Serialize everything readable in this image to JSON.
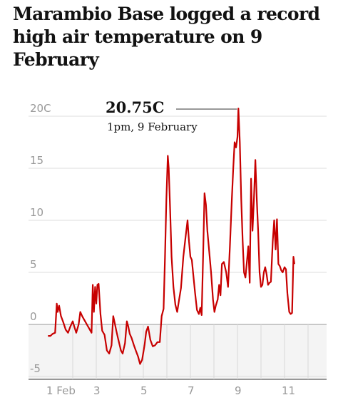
{
  "headline": "Marambio Base logged a record high air temperature on 9 February",
  "colors": {
    "line": "#c70000",
    "grid": "#dcdcdc",
    "below_zero_fill": "#f4f4f4",
    "axis_text": "#999999"
  },
  "chart_data": {
    "type": "line",
    "title": "Marambio Base logged a record high air temperature on 9 February",
    "xlabel": "",
    "ylabel": "",
    "ylim": [
      -5,
      21
    ],
    "xlim": [
      0.9,
      12.5
    ],
    "y_ticks": [
      {
        "value": 20,
        "label": "20C"
      },
      {
        "value": 15,
        "label": "15"
      },
      {
        "value": 10,
        "label": "10"
      },
      {
        "value": 5,
        "label": "5"
      },
      {
        "value": 0,
        "label": "0"
      },
      {
        "value": -5,
        "label": "-5"
      }
    ],
    "x_ticks": [
      {
        "value": 1,
        "label": "1 Feb"
      },
      {
        "value": 3,
        "label": "3"
      },
      {
        "value": 5,
        "label": "5"
      },
      {
        "value": 7,
        "label": "7"
      },
      {
        "value": 9,
        "label": "9"
      },
      {
        "value": 11,
        "label": "11"
      }
    ],
    "x_unit": "day of February",
    "grid": true,
    "annotation": {
      "value_label": "20.75C",
      "time_label": "1pm, 9 February",
      "x": 9.04,
      "y": 20.75
    },
    "series": [
      {
        "values": [
          [
            0.95,
            -1.1
          ],
          [
            1.05,
            -1.1
          ],
          [
            1.15,
            -0.9
          ],
          [
            1.25,
            -0.8
          ],
          [
            1.32,
            2.0
          ],
          [
            1.36,
            1.2
          ],
          [
            1.42,
            1.8
          ],
          [
            1.5,
            0.8
          ],
          [
            1.6,
            0.2
          ],
          [
            1.7,
            -0.5
          ],
          [
            1.8,
            -0.8
          ],
          [
            1.9,
            -0.2
          ],
          [
            2.0,
            0.3
          ],
          [
            2.08,
            -0.3
          ],
          [
            2.15,
            -0.8
          ],
          [
            2.25,
            0.0
          ],
          [
            2.32,
            1.2
          ],
          [
            2.4,
            0.8
          ],
          [
            2.5,
            0.4
          ],
          [
            2.6,
            0.0
          ],
          [
            2.7,
            -0.4
          ],
          [
            2.8,
            -0.8
          ],
          [
            2.85,
            3.8
          ],
          [
            2.9,
            1.2
          ],
          [
            2.95,
            3.6
          ],
          [
            3.0,
            2.0
          ],
          [
            3.05,
            3.8
          ],
          [
            3.1,
            3.9
          ],
          [
            3.18,
            1.0
          ],
          [
            3.25,
            -0.6
          ],
          [
            3.35,
            -1.0
          ],
          [
            3.45,
            -2.5
          ],
          [
            3.55,
            -2.8
          ],
          [
            3.65,
            -2.0
          ],
          [
            3.72,
            0.8
          ],
          [
            3.78,
            0.2
          ],
          [
            3.85,
            -0.6
          ],
          [
            3.95,
            -1.6
          ],
          [
            4.05,
            -2.5
          ],
          [
            4.12,
            -2.8
          ],
          [
            4.22,
            -1.8
          ],
          [
            4.3,
            0.3
          ],
          [
            4.36,
            -0.2
          ],
          [
            4.42,
            -0.9
          ],
          [
            4.5,
            -1.3
          ],
          [
            4.6,
            -2.0
          ],
          [
            4.68,
            -2.5
          ],
          [
            4.78,
            -3.1
          ],
          [
            4.86,
            -3.8
          ],
          [
            4.95,
            -3.4
          ],
          [
            5.05,
            -2.0
          ],
          [
            5.12,
            -0.7
          ],
          [
            5.2,
            -0.2
          ],
          [
            5.3,
            -1.5
          ],
          [
            5.4,
            -2.1
          ],
          [
            5.5,
            -2.0
          ],
          [
            5.6,
            -1.7
          ],
          [
            5.7,
            -1.7
          ],
          [
            5.78,
            0.8
          ],
          [
            5.86,
            1.5
          ],
          [
            5.92,
            6.5
          ],
          [
            5.98,
            12.0
          ],
          [
            6.04,
            16.2
          ],
          [
            6.08,
            15.0
          ],
          [
            6.14,
            11.0
          ],
          [
            6.2,
            6.5
          ],
          [
            6.28,
            3.6
          ],
          [
            6.36,
            1.9
          ],
          [
            6.44,
            1.2
          ],
          [
            6.52,
            2.4
          ],
          [
            6.6,
            3.5
          ],
          [
            6.7,
            6.5
          ],
          [
            6.8,
            8.5
          ],
          [
            6.88,
            10.0
          ],
          [
            6.94,
            8.0
          ],
          [
            7.0,
            6.5
          ],
          [
            7.06,
            6.2
          ],
          [
            7.12,
            4.8
          ],
          [
            7.2,
            3.0
          ],
          [
            7.28,
            1.4
          ],
          [
            7.36,
            1.0
          ],
          [
            7.42,
            1.6
          ],
          [
            7.48,
            0.9
          ],
          [
            7.54,
            6.5
          ],
          [
            7.6,
            12.6
          ],
          [
            7.66,
            11.5
          ],
          [
            7.72,
            9.0
          ],
          [
            7.8,
            7.0
          ],
          [
            7.88,
            5.0
          ],
          [
            7.96,
            2.4
          ],
          [
            8.02,
            1.2
          ],
          [
            8.08,
            1.8
          ],
          [
            8.16,
            2.4
          ],
          [
            8.22,
            3.8
          ],
          [
            8.28,
            2.8
          ],
          [
            8.34,
            5.8
          ],
          [
            8.42,
            6.0
          ],
          [
            8.52,
            5.0
          ],
          [
            8.6,
            3.6
          ],
          [
            8.68,
            7.5
          ],
          [
            8.76,
            12.0
          ],
          [
            8.82,
            15.0
          ],
          [
            8.88,
            17.5
          ],
          [
            8.94,
            17.0
          ],
          [
            9.0,
            18.0
          ],
          [
            9.04,
            20.75
          ],
          [
            9.1,
            17.5
          ],
          [
            9.16,
            12.0
          ],
          [
            9.22,
            8.0
          ],
          [
            9.28,
            5.0
          ],
          [
            9.34,
            4.5
          ],
          [
            9.4,
            6.0
          ],
          [
            9.46,
            7.5
          ],
          [
            9.52,
            4.0
          ],
          [
            9.58,
            14.0
          ],
          [
            9.64,
            9.0
          ],
          [
            9.7,
            12.0
          ],
          [
            9.76,
            15.8
          ],
          [
            9.82,
            12.0
          ],
          [
            9.88,
            9.0
          ],
          [
            9.94,
            5.0
          ],
          [
            10.0,
            3.6
          ],
          [
            10.06,
            3.8
          ],
          [
            10.12,
            5.0
          ],
          [
            10.18,
            5.5
          ],
          [
            10.24,
            4.8
          ],
          [
            10.3,
            3.8
          ],
          [
            10.36,
            4.0
          ],
          [
            10.42,
            4.1
          ],
          [
            10.5,
            8.0
          ],
          [
            10.56,
            10.0
          ],
          [
            10.62,
            7.2
          ],
          [
            10.68,
            10.1
          ],
          [
            10.74,
            5.8
          ],
          [
            10.8,
            5.6
          ],
          [
            10.86,
            5.2
          ],
          [
            10.92,
            5.0
          ],
          [
            11.0,
            5.5
          ],
          [
            11.06,
            5.3
          ],
          [
            11.12,
            3.0
          ],
          [
            11.2,
            1.2
          ],
          [
            11.26,
            1.0
          ],
          [
            11.32,
            1.1
          ],
          [
            11.38,
            6.5
          ],
          [
            11.42,
            5.8
          ]
        ]
      }
    ]
  }
}
